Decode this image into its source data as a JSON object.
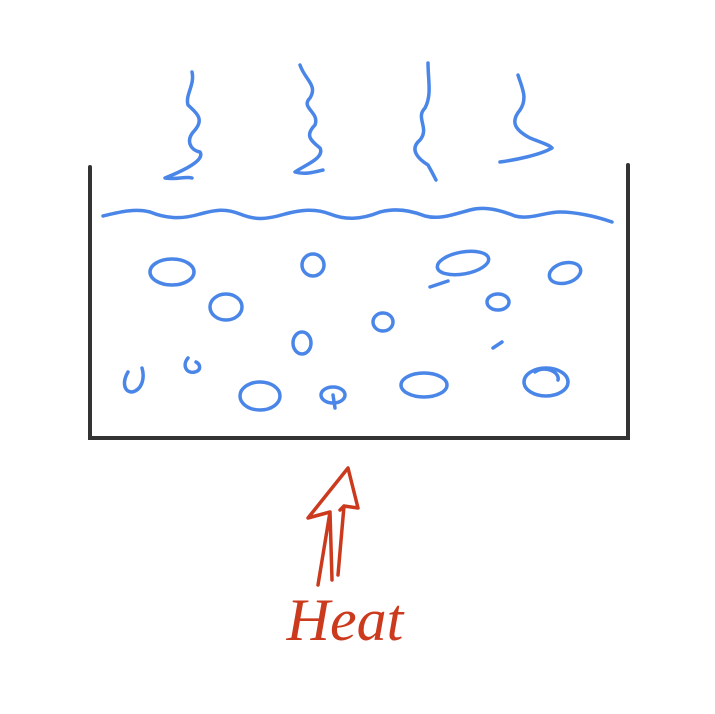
{
  "label": "Heat"
}
